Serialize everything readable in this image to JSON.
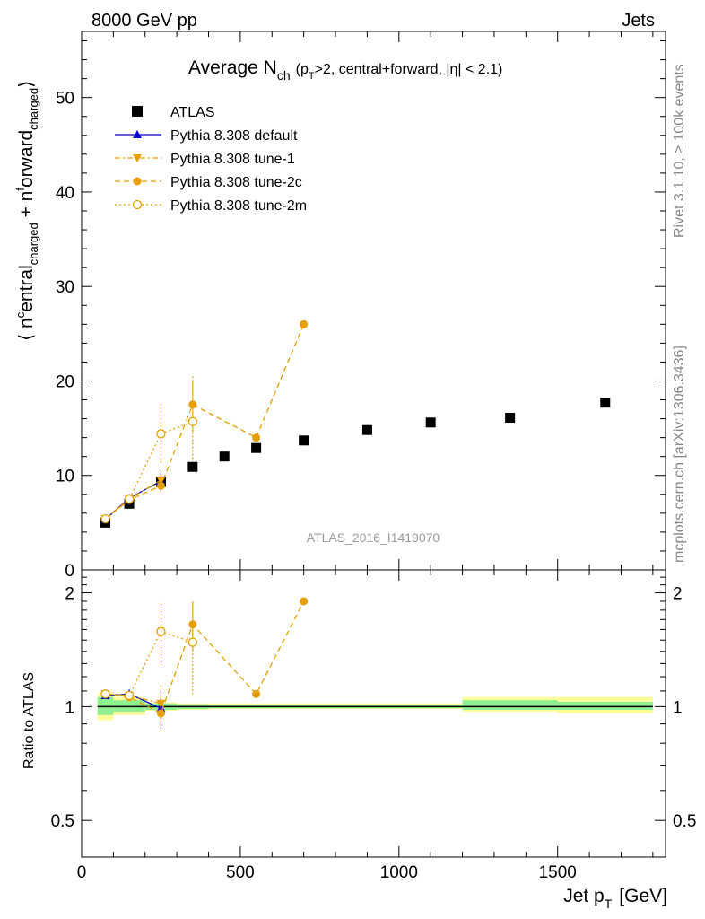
{
  "header": {
    "energy_label": "8000 GeV pp",
    "category_label": "Jets",
    "rivet_label": "Rivet 3.1.10, ≥ 100k events",
    "source_label": "mcplots.cern.ch [arXiv:1306.3436]",
    "analysis_label": "ATLAS_2016_I1419070"
  },
  "title": {
    "main": "Average N",
    "sub": "ch",
    "rest_a": "(p",
    "rest_sub": "T",
    "rest_b": ">2, central+forward, |η| < 2.1)"
  },
  "axes": {
    "ylabel_main": "⟨ n^{c}entral_{charged} + n^{f}orward_{charged} ⟩",
    "ylabel_ratio": "Ratio to ATLAS",
    "xlabel": "Jet p",
    "xlabel_sub": "T",
    "xlabel_unit": "[GeV]"
  },
  "colors": {
    "data": "#000000",
    "default": "#0000cc",
    "tunes": "#e69f00",
    "band_inner": "#8ff08f",
    "band_outer": "#ffff99"
  },
  "chart_data": [
    {
      "type": "scatter",
      "panel": "main",
      "xlim": [
        0,
        1840
      ],
      "ylim": [
        0,
        57
      ],
      "y_ticks": [
        0,
        10,
        20,
        30,
        40,
        50
      ],
      "x_ticks": [
        0,
        500,
        1000,
        1500
      ],
      "legend_position": "top-left",
      "series": [
        {
          "name": "ATLAS",
          "style": "data",
          "points": [
            {
              "x": 75,
              "y": 5.0
            },
            {
              "x": 150,
              "y": 7.0
            },
            {
              "x": 250,
              "y": 9.3
            },
            {
              "x": 350,
              "y": 10.9
            },
            {
              "x": 450,
              "y": 12.0
            },
            {
              "x": 550,
              "y": 12.9
            },
            {
              "x": 700,
              "y": 13.7
            },
            {
              "x": 900,
              "y": 14.8
            },
            {
              "x": 1100,
              "y": 15.6
            },
            {
              "x": 1350,
              "y": 16.1
            },
            {
              "x": 1650,
              "y": 17.7
            }
          ]
        },
        {
          "name": "Pythia 8.308 default",
          "style": "default",
          "points": [
            {
              "x": 75,
              "y": 5.35,
              "err": 0.1
            },
            {
              "x": 150,
              "y": 7.6,
              "err": 0.2
            },
            {
              "x": 250,
              "y": 9.4,
              "err": 1.2
            }
          ]
        },
        {
          "name": "Pythia 8.308 tune-1",
          "style": "tune1",
          "points": [
            {
              "x": 75,
              "y": 5.4,
              "err": 0.1
            },
            {
              "x": 150,
              "y": 7.5,
              "err": 0.2
            },
            {
              "x": 250,
              "y": 9.5,
              "err": 1.0
            }
          ]
        },
        {
          "name": "Pythia 8.308 tune-2c",
          "style": "tune2c",
          "points": [
            {
              "x": 75,
              "y": 5.4,
              "err": 0.1
            },
            {
              "x": 150,
              "y": 7.4,
              "err": 0.2
            },
            {
              "x": 250,
              "y": 8.9,
              "err": 1.0
            },
            {
              "x": 350,
              "y": 17.5,
              "err": 3.0
            },
            {
              "x": 550,
              "y": 14.0,
              "err": 0.1
            },
            {
              "x": 700,
              "y": 26.0,
              "err": 0.1
            }
          ]
        },
        {
          "name": "Pythia 8.308 tune-2m",
          "style": "tune2m",
          "points": [
            {
              "x": 75,
              "y": 5.4,
              "err": 0.1
            },
            {
              "x": 150,
              "y": 7.5,
              "err": 0.2
            },
            {
              "x": 250,
              "y": 14.4,
              "err": 3.2
            },
            {
              "x": 350,
              "y": 15.7,
              "err": 4.2
            }
          ]
        }
      ]
    },
    {
      "type": "scatter",
      "panel": "ratio",
      "xlim": [
        0,
        1840
      ],
      "ylim": [
        0.4,
        2.3
      ],
      "log_y": true,
      "y_ticks": [
        0.5,
        1,
        2
      ],
      "x_ticks": [
        0,
        500,
        1000,
        1500
      ],
      "bands": [
        {
          "x0": 50,
          "x1": 100,
          "inner": [
            0.95,
            1.06
          ],
          "outer": [
            0.92,
            1.09
          ]
        },
        {
          "x0": 100,
          "x1": 200,
          "inner": [
            0.97,
            1.04
          ],
          "outer": [
            0.95,
            1.06
          ]
        },
        {
          "x0": 200,
          "x1": 300,
          "inner": [
            0.98,
            1.02
          ],
          "outer": [
            0.975,
            1.025
          ]
        },
        {
          "x0": 300,
          "x1": 400,
          "inner": [
            0.985,
            1.015
          ],
          "outer": [
            0.98,
            1.02
          ]
        },
        {
          "x0": 400,
          "x1": 1200,
          "inner": [
            0.99,
            1.01
          ],
          "outer": [
            0.985,
            1.02
          ]
        },
        {
          "x0": 1200,
          "x1": 1500,
          "inner": [
            0.98,
            1.04
          ],
          "outer": [
            0.97,
            1.06
          ]
        },
        {
          "x0": 1500,
          "x1": 1800,
          "inner": [
            0.98,
            1.03
          ],
          "outer": [
            0.96,
            1.06
          ]
        }
      ],
      "series": [
        {
          "name": "Pythia 8.308 default",
          "style": "default",
          "points": [
            {
              "x": 75,
              "y": 1.07,
              "err": 0.02
            },
            {
              "x": 150,
              "y": 1.08,
              "err": 0.03
            },
            {
              "x": 250,
              "y": 0.99,
              "err": 0.12
            }
          ]
        },
        {
          "name": "Pythia 8.308 tune-1",
          "style": "tune1",
          "points": [
            {
              "x": 75,
              "y": 1.08,
              "err": 0.02
            },
            {
              "x": 150,
              "y": 1.07,
              "err": 0.03
            },
            {
              "x": 250,
              "y": 1.02,
              "err": 0.12
            }
          ]
        },
        {
          "name": "Pythia 8.308 tune-2c",
          "style": "tune2c",
          "points": [
            {
              "x": 75,
              "y": 1.08,
              "err": 0.02
            },
            {
              "x": 150,
              "y": 1.06,
              "err": 0.03
            },
            {
              "x": 250,
              "y": 0.96,
              "err": 0.1
            },
            {
              "x": 350,
              "y": 1.65,
              "err": 0.25
            },
            {
              "x": 550,
              "y": 1.08,
              "err": 0.01
            },
            {
              "x": 700,
              "y": 1.9,
              "err": 0.01
            }
          ]
        },
        {
          "name": "Pythia 8.308 tune-2m",
          "style": "tune2m",
          "points": [
            {
              "x": 75,
              "y": 1.08,
              "err": 0.02
            },
            {
              "x": 150,
              "y": 1.07,
              "err": 0.03
            },
            {
              "x": 250,
              "y": 1.58,
              "err": 0.3
            },
            {
              "x": 350,
              "y": 1.48,
              "err": 0.4
            }
          ]
        }
      ]
    }
  ]
}
